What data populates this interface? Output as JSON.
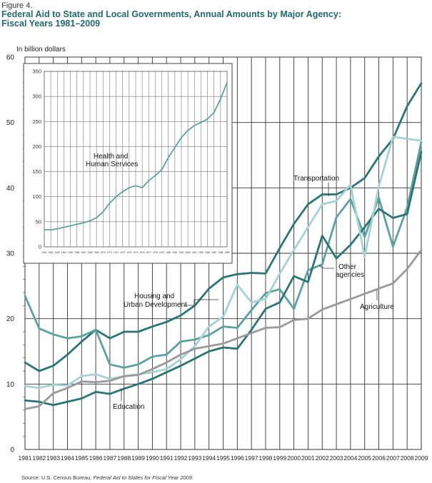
{
  "figure_label": "Figure 4.",
  "title_line1": "Federal Aid to State and Local Governments, Annual Amounts by Major Agency:",
  "title_line2": "Fiscal Years 1981–2009",
  "source_prefix": "Source: U.S. Census Bureau, ",
  "source_italic": "Federal Aid to States for Fiscal Year 2009.",
  "chart_data": [
    {
      "type": "line",
      "ylabel": "In billion dollars",
      "ylim": [
        0,
        60
      ],
      "yticks": [
        0,
        10,
        20,
        30,
        40,
        50,
        60
      ],
      "x": [
        "1981",
        "1982",
        "1983",
        "1984",
        "1985",
        "1986",
        "1987",
        "1988",
        "1989",
        "1990",
        "1991",
        "1992",
        "1993",
        "1994",
        "1995",
        "1996",
        "1997",
        "1998",
        "1999",
        "2000",
        "2001",
        "2002",
        "2003",
        "2004",
        "2005",
        "2006",
        "2007",
        "2008",
        "2009"
      ],
      "grid": true,
      "colors": {
        "dark": "#2a7575",
        "medium": "#5aa3a3",
        "light": "#a3d3d3",
        "gray": "#9a9a9a"
      },
      "series": [
        {
          "name": "Transportation",
          "color": "#2a7575",
          "values": [
            13.3,
            12.0,
            12.8,
            14.5,
            16.5,
            18.3,
            17.0,
            18.0,
            18.0,
            18.8,
            19.5,
            20.5,
            22.0,
            24.6,
            26.3,
            26.8,
            27.0,
            26.9,
            30.8,
            34.5,
            37.5,
            39.0,
            39.0,
            40.0,
            41.5,
            44.8,
            47.5,
            52.5,
            56.0
          ]
        },
        {
          "name": "Housing and Urban Development",
          "color": "#5aa3a3",
          "values": [
            23.5,
            18.5,
            17.6,
            17.0,
            17.3,
            18.3,
            13.0,
            12.5,
            13.0,
            14.2,
            14.5,
            16.5,
            16.8,
            17.5,
            18.8,
            18.6,
            21.3,
            23.9,
            24.5,
            21.5,
            27.4,
            28.3,
            35.5,
            38.3,
            32.5,
            38.5,
            31.0,
            37.0,
            47.0
          ]
        },
        {
          "name": "Education",
          "color": "#2a7575",
          "values": [
            7.5,
            7.3,
            6.8,
            7.3,
            7.8,
            8.8,
            8.5,
            9.3,
            10.0,
            10.8,
            11.8,
            12.8,
            13.9,
            15.0,
            15.6,
            15.4,
            18.3,
            21.5,
            22.5,
            26.5,
            25.6,
            32.7,
            29.2,
            31.3,
            34.0,
            36.8,
            35.4,
            36.0,
            45.5
          ]
        },
        {
          "name": "Other agencies",
          "color": "#a3d3d3",
          "values": [
            9.7,
            9.4,
            9.9,
            9.8,
            11.2,
            11.5,
            10.8,
            11.2,
            11.5,
            11.8,
            12.3,
            13.8,
            15.8,
            18.8,
            20.3,
            25.2,
            22.5,
            23.0,
            26.9,
            30.5,
            34.0,
            37.5,
            38.0,
            40.5,
            29.5,
            40.2,
            47.8,
            47.5,
            47.2
          ]
        },
        {
          "name": "Agriculture",
          "color": "#9a9a9a",
          "values": [
            6.2,
            6.6,
            8.6,
            9.4,
            10.4,
            10.3,
            10.5,
            11.2,
            11.4,
            12.3,
            13.3,
            14.5,
            15.4,
            15.8,
            16.2,
            17.0,
            17.8,
            18.6,
            18.7,
            19.8,
            20.0,
            21.4,
            22.2,
            23.0,
            23.8,
            24.6,
            25.4,
            27.6,
            30.5
          ]
        }
      ],
      "labels": {
        "Transportation": "Transportation",
        "Housing_line1": "Housing and",
        "Housing_line2": "Urban Development",
        "Education": "Education",
        "Other_line1": "Other",
        "Other_line2": "agencies",
        "Agriculture": "Agriculture"
      }
    },
    {
      "type": "line",
      "inset": true,
      "ylim": [
        0,
        350
      ],
      "yticks": [
        0,
        50,
        100,
        150,
        200,
        250,
        300,
        350
      ],
      "x": [
        "1961",
        "1962",
        "1963",
        "1964",
        "1965",
        "1966",
        "1967",
        "1968",
        "1969",
        "1970",
        "1971",
        "1972",
        "1973",
        "1974",
        "1975",
        "1976",
        "1977",
        "1978",
        "1979",
        "1980",
        "1981",
        "1982",
        "1983",
        "1984",
        "1985",
        "1986",
        "1987",
        "1988",
        "1989"
      ],
      "series": [
        {
          "name": "Health and Human Services",
          "color": "#5aa3a3",
          "values": [
            34,
            34,
            36,
            39,
            42,
            45,
            48,
            52,
            58,
            70,
            87,
            100,
            110,
            118,
            122,
            118,
            132,
            142,
            154,
            178,
            198,
            218,
            232,
            242,
            248,
            255,
            268,
            295,
            328
          ]
        }
      ],
      "label_line1": "Health and",
      "label_line2": "Human Services"
    }
  ]
}
